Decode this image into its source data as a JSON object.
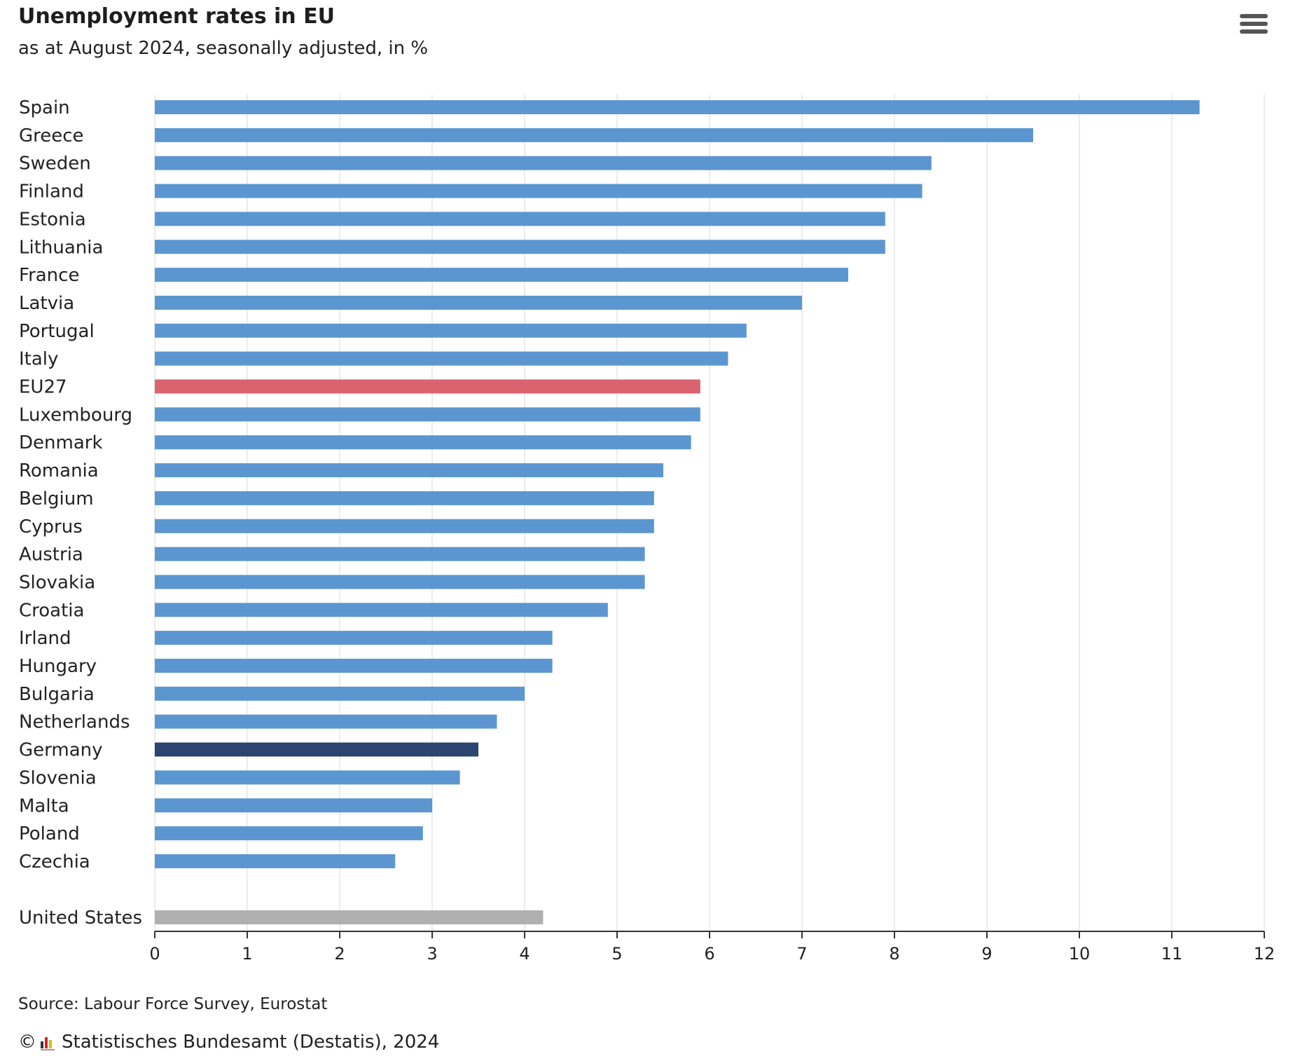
{
  "header": {
    "title": "Unemployment rates in EU",
    "subtitle": "as at August 2024, seasonally adjusted, in %"
  },
  "menu_icon": "hamburger-menu-icon",
  "footer": {
    "source": "Source: Labour Force Survey, Eurostat",
    "copyright_symbol": "©",
    "credit": "Statistisches Bundesamt (Destatis), 2024"
  },
  "colors": {
    "default_bar": "#5b96d0",
    "eu27_bar": "#d96470",
    "germany_bar": "#2b4470",
    "us_bar": "#b0b0b0",
    "grid": "#d9d9d9",
    "axis": "#333333"
  },
  "chart_data": {
    "type": "bar",
    "orientation": "horizontal",
    "categories": [
      "Spain",
      "Greece",
      "Sweden",
      "Finland",
      "Estonia",
      "Lithuania",
      "France",
      "Latvia",
      "Portugal",
      "Italy",
      "EU27",
      "Luxembourg",
      "Denmark",
      "Romania",
      "Belgium",
      "Cyprus",
      "Austria",
      "Slovakia",
      "Croatia",
      "Irland",
      "Hungary",
      "Bulgaria",
      "Netherlands",
      "Germany",
      "Slovenia",
      "Malta",
      "Poland",
      "Czechia",
      "United States"
    ],
    "values": [
      11.3,
      9.5,
      8.4,
      8.3,
      7.9,
      7.9,
      7.5,
      7.0,
      6.4,
      6.2,
      5.9,
      5.9,
      5.8,
      5.5,
      5.4,
      5.4,
      5.3,
      5.3,
      4.9,
      4.3,
      4.3,
      4.0,
      3.7,
      3.5,
      3.3,
      3.0,
      2.9,
      2.6,
      4.2
    ],
    "highlight": {
      "EU27": "eu27_bar",
      "Germany": "germany_bar",
      "United States": "us_bar"
    },
    "xlim": [
      0,
      12
    ],
    "xticks": [
      "0",
      "1",
      "2",
      "3",
      "4",
      "5",
      "6",
      "7",
      "8",
      "9",
      "10",
      "11",
      "12"
    ],
    "grid": "vertical",
    "xlabel": "",
    "ylabel": ""
  }
}
